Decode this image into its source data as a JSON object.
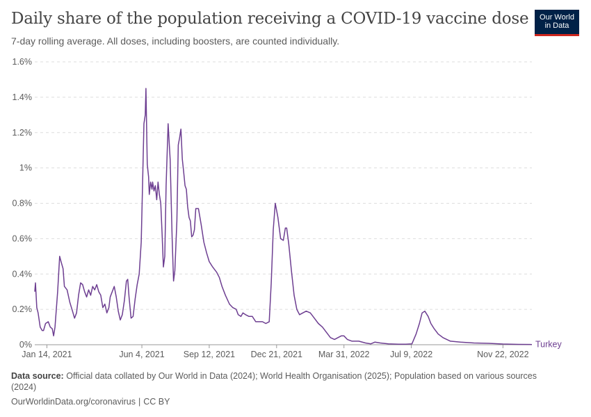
{
  "header": {
    "title": "Daily share of the population receiving a COVID-19 vaccine dose",
    "subtitle": "7-day rolling average. All doses, including boosters, are counted individually."
  },
  "logo": {
    "line1": "Our World",
    "line2": "in Data"
  },
  "footer": {
    "source_label": "Data source:",
    "source_text": "Official data collated by Our World in Data (2024); World Health Organisation (2025); Population based on various sources (2024)",
    "url": "OurWorldinData.org/coronavirus",
    "license": "CC BY"
  },
  "colors": {
    "series": "#6d3e91",
    "grid": "#dddddd",
    "axis": "#999999",
    "text": "#5b5b5b"
  },
  "chart_data": {
    "type": "line",
    "xlim": [
      "2020-12-27",
      "2023-01-04"
    ],
    "ylim": [
      0,
      1.6
    ],
    "y_ticks": [
      {
        "value": 0,
        "label": "0%"
      },
      {
        "value": 0.2,
        "label": "0.2%"
      },
      {
        "value": 0.4,
        "label": "0.4%"
      },
      {
        "value": 0.6,
        "label": "0.6%"
      },
      {
        "value": 0.8,
        "label": "0.8%"
      },
      {
        "value": 1.0,
        "label": "1%"
      },
      {
        "value": 1.2,
        "label": "1.2%"
      },
      {
        "value": 1.4,
        "label": "1.4%"
      },
      {
        "value": 1.6,
        "label": "1.6%"
      }
    ],
    "x_ticks": [
      {
        "date": "2021-01-14",
        "label": "Jan 14, 2021"
      },
      {
        "date": "2021-06-04",
        "label": "Jun 4, 2021"
      },
      {
        "date": "2021-09-12",
        "label": "Sep 12, 2021"
      },
      {
        "date": "2021-12-21",
        "label": "Dec 21, 2021"
      },
      {
        "date": "2022-03-31",
        "label": "Mar 31, 2022"
      },
      {
        "date": "2022-07-09",
        "label": "Jul 9, 2022"
      },
      {
        "date": "2022-11-22",
        "label": "Nov 22, 2022"
      }
    ],
    "grid": true,
    "series": [
      {
        "name": "Turkey",
        "points": [
          [
            "2020-12-27",
            0.3
          ],
          [
            "2020-12-28",
            0.35
          ],
          [
            "2020-12-30",
            0.21
          ],
          [
            "2021-01-01",
            0.18
          ],
          [
            "2021-01-04",
            0.1
          ],
          [
            "2021-01-07",
            0.08
          ],
          [
            "2021-01-09",
            0.08
          ],
          [
            "2021-01-12",
            0.12
          ],
          [
            "2021-01-16",
            0.13
          ],
          [
            "2021-01-19",
            0.1
          ],
          [
            "2021-01-22",
            0.09
          ],
          [
            "2021-01-24",
            0.05
          ],
          [
            "2021-01-26",
            0.1
          ],
          [
            "2021-01-30",
            0.3
          ],
          [
            "2021-02-02",
            0.5
          ],
          [
            "2021-02-04",
            0.47
          ],
          [
            "2021-02-07",
            0.43
          ],
          [
            "2021-02-09",
            0.33
          ],
          [
            "2021-02-13",
            0.31
          ],
          [
            "2021-02-17",
            0.24
          ],
          [
            "2021-02-21",
            0.19
          ],
          [
            "2021-02-24",
            0.15
          ],
          [
            "2021-02-27",
            0.18
          ],
          [
            "2021-03-02",
            0.28
          ],
          [
            "2021-03-05",
            0.35
          ],
          [
            "2021-03-08",
            0.34
          ],
          [
            "2021-03-11",
            0.3
          ],
          [
            "2021-03-14",
            0.27
          ],
          [
            "2021-03-17",
            0.31
          ],
          [
            "2021-03-20",
            0.28
          ],
          [
            "2021-03-23",
            0.33
          ],
          [
            "2021-03-26",
            0.31
          ],
          [
            "2021-03-29",
            0.34
          ],
          [
            "2021-04-01",
            0.3
          ],
          [
            "2021-04-04",
            0.28
          ],
          [
            "2021-04-07",
            0.21
          ],
          [
            "2021-04-10",
            0.23
          ],
          [
            "2021-04-13",
            0.18
          ],
          [
            "2021-04-16",
            0.21
          ],
          [
            "2021-04-18",
            0.27
          ],
          [
            "2021-04-21",
            0.3
          ],
          [
            "2021-04-24",
            0.33
          ],
          [
            "2021-04-27",
            0.27
          ],
          [
            "2021-04-30",
            0.19
          ],
          [
            "2021-05-03",
            0.14
          ],
          [
            "2021-05-06",
            0.17
          ],
          [
            "2021-05-09",
            0.25
          ],
          [
            "2021-05-12",
            0.36
          ],
          [
            "2021-05-14",
            0.37
          ],
          [
            "2021-05-16",
            0.27
          ],
          [
            "2021-05-19",
            0.15
          ],
          [
            "2021-05-22",
            0.16
          ],
          [
            "2021-05-25",
            0.26
          ],
          [
            "2021-05-28",
            0.34
          ],
          [
            "2021-05-31",
            0.4
          ],
          [
            "2021-06-03",
            0.58
          ],
          [
            "2021-06-05",
            0.9
          ],
          [
            "2021-06-07",
            1.25
          ],
          [
            "2021-06-09",
            1.3
          ],
          [
            "2021-06-10",
            1.45
          ],
          [
            "2021-06-12",
            1.02
          ],
          [
            "2021-06-14",
            0.95
          ],
          [
            "2021-06-15",
            0.85
          ],
          [
            "2021-06-17",
            0.92
          ],
          [
            "2021-06-19",
            0.88
          ],
          [
            "2021-06-20",
            0.92
          ],
          [
            "2021-06-22",
            0.87
          ],
          [
            "2021-06-24",
            0.9
          ],
          [
            "2021-06-26",
            0.82
          ],
          [
            "2021-06-28",
            0.92
          ],
          [
            "2021-06-30",
            0.85
          ],
          [
            "2021-07-02",
            0.8
          ],
          [
            "2021-07-04",
            0.63
          ],
          [
            "2021-07-06",
            0.44
          ],
          [
            "2021-07-08",
            0.5
          ],
          [
            "2021-07-10",
            0.9
          ],
          [
            "2021-07-13",
            1.25
          ],
          [
            "2021-07-16",
            1.05
          ],
          [
            "2021-07-19",
            0.6
          ],
          [
            "2021-07-21",
            0.36
          ],
          [
            "2021-07-23",
            0.42
          ],
          [
            "2021-07-26",
            0.7
          ],
          [
            "2021-07-28",
            1.13
          ],
          [
            "2021-07-30",
            1.17
          ],
          [
            "2021-08-01",
            1.22
          ],
          [
            "2021-08-03",
            1.05
          ],
          [
            "2021-08-05",
            0.98
          ],
          [
            "2021-08-07",
            0.9
          ],
          [
            "2021-08-09",
            0.88
          ],
          [
            "2021-08-11",
            0.78
          ],
          [
            "2021-08-13",
            0.72
          ],
          [
            "2021-08-15",
            0.7
          ],
          [
            "2021-08-17",
            0.61
          ],
          [
            "2021-08-19",
            0.62
          ],
          [
            "2021-08-21",
            0.65
          ],
          [
            "2021-08-23",
            0.77
          ],
          [
            "2021-08-27",
            0.77
          ],
          [
            "2021-08-31",
            0.68
          ],
          [
            "2021-09-04",
            0.58
          ],
          [
            "2021-09-08",
            0.52
          ],
          [
            "2021-09-12",
            0.47
          ],
          [
            "2021-09-17",
            0.44
          ],
          [
            "2021-09-23",
            0.41
          ],
          [
            "2021-09-27",
            0.38
          ],
          [
            "2021-10-01",
            0.33
          ],
          [
            "2021-10-06",
            0.28
          ],
          [
            "2021-10-12",
            0.23
          ],
          [
            "2021-10-17",
            0.21
          ],
          [
            "2021-10-22",
            0.2
          ],
          [
            "2021-10-25",
            0.17
          ],
          [
            "2021-10-29",
            0.16
          ],
          [
            "2021-11-01",
            0.18
          ],
          [
            "2021-11-05",
            0.17
          ],
          [
            "2021-11-10",
            0.16
          ],
          [
            "2021-11-15",
            0.16
          ],
          [
            "2021-11-20",
            0.13
          ],
          [
            "2021-11-25",
            0.13
          ],
          [
            "2021-11-30",
            0.13
          ],
          [
            "2021-12-05",
            0.12
          ],
          [
            "2021-12-10",
            0.13
          ],
          [
            "2021-12-13",
            0.35
          ],
          [
            "2021-12-16",
            0.65
          ],
          [
            "2021-12-19",
            0.8
          ],
          [
            "2021-12-23",
            0.72
          ],
          [
            "2021-12-27",
            0.6
          ],
          [
            "2021-12-31",
            0.59
          ],
          [
            "2022-01-03",
            0.66
          ],
          [
            "2022-01-05",
            0.66
          ],
          [
            "2022-01-08",
            0.57
          ],
          [
            "2022-01-12",
            0.42
          ],
          [
            "2022-01-16",
            0.28
          ],
          [
            "2022-01-20",
            0.2
          ],
          [
            "2022-01-24",
            0.17
          ],
          [
            "2022-01-29",
            0.18
          ],
          [
            "2022-02-03",
            0.19
          ],
          [
            "2022-02-09",
            0.18
          ],
          [
            "2022-02-15",
            0.15
          ],
          [
            "2022-02-21",
            0.12
          ],
          [
            "2022-02-27",
            0.1
          ],
          [
            "2022-03-05",
            0.07
          ],
          [
            "2022-03-11",
            0.04
          ],
          [
            "2022-03-17",
            0.03
          ],
          [
            "2022-03-22",
            0.04
          ],
          [
            "2022-03-27",
            0.05
          ],
          [
            "2022-03-31",
            0.05
          ],
          [
            "2022-04-05",
            0.03
          ],
          [
            "2022-04-12",
            0.02
          ],
          [
            "2022-04-22",
            0.02
          ],
          [
            "2022-05-02",
            0.01
          ],
          [
            "2022-05-10",
            0.005
          ],
          [
            "2022-05-16",
            0.015
          ],
          [
            "2022-05-24",
            0.01
          ],
          [
            "2022-06-05",
            0.005
          ],
          [
            "2022-06-20",
            0.003
          ],
          [
            "2022-07-01",
            0.003
          ],
          [
            "2022-07-10",
            0.005
          ],
          [
            "2022-07-16",
            0.06
          ],
          [
            "2022-07-21",
            0.12
          ],
          [
            "2022-07-25",
            0.18
          ],
          [
            "2022-07-29",
            0.19
          ],
          [
            "2022-08-03",
            0.16
          ],
          [
            "2022-08-07",
            0.12
          ],
          [
            "2022-08-12",
            0.09
          ],
          [
            "2022-08-18",
            0.06
          ],
          [
            "2022-08-25",
            0.04
          ],
          [
            "2022-09-05",
            0.02
          ],
          [
            "2022-09-20",
            0.015
          ],
          [
            "2022-10-10",
            0.01
          ],
          [
            "2022-11-01",
            0.008
          ],
          [
            "2022-11-22",
            0.004
          ],
          [
            "2022-12-15",
            0.002
          ],
          [
            "2023-01-04",
            0.001
          ]
        ]
      }
    ]
  }
}
